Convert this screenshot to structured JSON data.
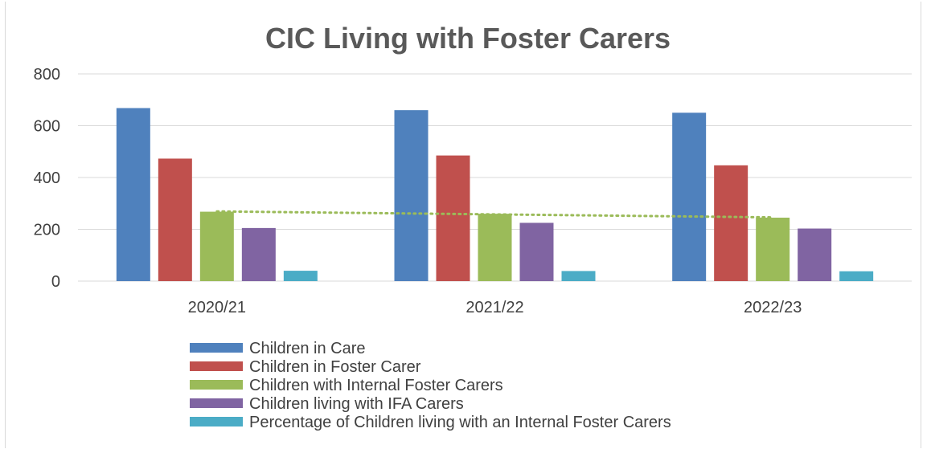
{
  "chart_data": {
    "type": "bar",
    "title": "CIC Living with Foster Carers",
    "xlabel": "",
    "ylabel": "",
    "categories": [
      "2020/21",
      "2021/22",
      "2022/23"
    ],
    "ylim": [
      0,
      800
    ],
    "yticks": [
      0,
      200,
      400,
      600,
      800
    ],
    "grid": true,
    "legend_position": "bottom",
    "series": [
      {
        "name": "Children in Care",
        "values": [
          668,
          660,
          650
        ],
        "color": "#4f81bd"
      },
      {
        "name": "Children in Foster Carer",
        "values": [
          473,
          485,
          447
        ],
        "color": "#c0504d"
      },
      {
        "name": "Children with Internal Foster Carers",
        "values": [
          268,
          260,
          245
        ],
        "color": "#9bbb59"
      },
      {
        "name": "Children living with IFA Carers",
        "values": [
          205,
          225,
          203
        ],
        "color": "#8064a2"
      },
      {
        "name": "Percentage of Children living with an Internal Foster Carers",
        "values": [
          40,
          39,
          38
        ],
        "color": "#4bacc6"
      }
    ],
    "trendline": {
      "series": "Children with Internal Foster Carers",
      "style": "dotted",
      "color": "#9bbb59"
    }
  }
}
